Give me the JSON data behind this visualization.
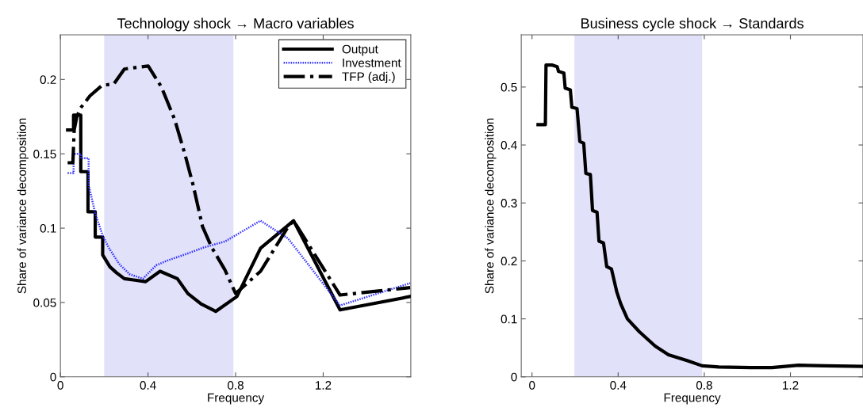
{
  "chart_data": [
    {
      "type": "line",
      "title": "Technology shock → Macro variables",
      "xlabel": "Frequency",
      "ylabel": "Share of variance decomposition",
      "xlim": [
        0,
        1.6
      ],
      "ylim": [
        0,
        0.23
      ],
      "xticks": [
        0,
        0.4,
        0.8,
        {
          "value": 1.2,
          "label": "1.2"
        }
      ],
      "yticks": [
        0,
        0.05,
        0.1,
        0.15,
        0.2
      ],
      "bands": [
        {
          "axis": "x",
          "from": 0.2,
          "to": 0.79,
          "color": "#e1e1fa"
        }
      ],
      "legend": "top right",
      "grid": false,
      "series": [
        {
          "name": "Output",
          "color": "#000000",
          "line_style": "solid",
          "x": [
            0.033,
            0.06,
            0.06,
            0.093,
            0.093,
            0.126,
            0.126,
            0.159,
            0.159,
            0.193,
            0.193,
            0.226,
            0.256,
            0.292,
            0.341,
            0.389,
            0.455,
            0.534,
            0.582,
            0.643,
            0.709,
            0.806,
            0.914,
            1.065,
            1.277,
            1.597
          ],
          "values": [
            0.166,
            0.166,
            0.176,
            0.176,
            0.138,
            0.138,
            0.111,
            0.111,
            0.094,
            0.094,
            0.082,
            0.074,
            0.07,
            0.066,
            0.065,
            0.064,
            0.071,
            0.066,
            0.056,
            0.049,
            0.044,
            0.054,
            0.0865,
            0.105,
            0.045,
            0.054
          ]
        },
        {
          "name": "Investment",
          "color": "#3030ff",
          "line_style": "dotted",
          "x": [
            0.033,
            0.06,
            0.06,
            0.093,
            0.093,
            0.129,
            0.129,
            0.159,
            0.193,
            0.22,
            0.268,
            0.316,
            0.377,
            0.437,
            0.485,
            0.582,
            0.655,
            0.751,
            0.914,
            1.04,
            1.277,
            1.597
          ],
          "values": [
            0.137,
            0.137,
            0.15,
            0.15,
            0.147,
            0.147,
            0.129,
            0.11,
            0.095,
            0.087,
            0.076,
            0.069,
            0.066,
            0.075,
            0.078,
            0.083,
            0.087,
            0.091,
            0.105,
            0.093,
            0.048,
            0.063
          ]
        },
        {
          "name": "TFP (adj.)",
          "color": "#000000",
          "line_style": "dashdot",
          "x": [
            0.033,
            0.057,
            0.063,
            0.075,
            0.093,
            0.135,
            0.19,
            0.244,
            0.292,
            0.341,
            0.401,
            0.461,
            0.522,
            0.57,
            0.606,
            0.649,
            0.691,
            0.751,
            0.8,
            0.914,
            1.04,
            1.065,
            1.277,
            1.597
          ],
          "values": [
            0.144,
            0.144,
            0.166,
            0.175,
            0.181,
            0.189,
            0.196,
            0.197,
            0.207,
            0.208,
            0.209,
            0.195,
            0.173,
            0.149,
            0.129,
            0.101,
            0.087,
            0.072,
            0.056,
            0.071,
            0.101,
            0.105,
            0.055,
            0.06
          ]
        }
      ]
    },
    {
      "type": "line",
      "title": "Business cycle shock → Standards",
      "xlabel": "Frequency",
      "ylabel": "Share of variance decomposition",
      "xlim": [
        -0.05,
        1.537
      ],
      "ylim": [
        0,
        0.59
      ],
      "xticks": [
        0,
        0.4,
        0.8,
        1.2
      ],
      "yticks": [
        0,
        0.1,
        0.2,
        0.3,
        0.4,
        0.5
      ],
      "bands": [
        {
          "axis": "x",
          "from": 0.197,
          "to": 0.79,
          "color": "#e1e1fa"
        }
      ],
      "legend": false,
      "grid": false,
      "series": [
        {
          "color": "#000000",
          "line_style": "solid",
          "x": [
            0.028,
            0.062,
            0.065,
            0.092,
            0.117,
            0.123,
            0.148,
            0.154,
            0.178,
            0.185,
            0.209,
            0.222,
            0.24,
            0.25,
            0.271,
            0.281,
            0.302,
            0.311,
            0.332,
            0.347,
            0.369,
            0.394,
            0.412,
            0.443,
            0.498,
            0.572,
            0.634,
            0.72,
            0.79,
            0.868,
            1.015,
            1.114,
            1.237,
            1.36,
            1.537
          ],
          "values": [
            0.435,
            0.435,
            0.538,
            0.538,
            0.535,
            0.527,
            0.524,
            0.498,
            0.495,
            0.465,
            0.463,
            0.406,
            0.403,
            0.351,
            0.349,
            0.287,
            0.284,
            0.234,
            0.231,
            0.19,
            0.186,
            0.146,
            0.126,
            0.1,
            0.078,
            0.053,
            0.038,
            0.028,
            0.019,
            0.017,
            0.016,
            0.016,
            0.02,
            0.019,
            0.018
          ]
        }
      ]
    }
  ]
}
